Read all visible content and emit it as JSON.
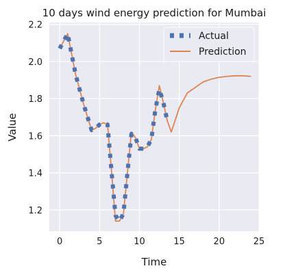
{
  "chart_data": {
    "type": "line",
    "title": "10 days wind energy prediction for Mumbai",
    "xlabel": "Time",
    "ylabel": "Value",
    "xlim": [
      -1.3,
      25.0
    ],
    "ylim": [
      1.085,
      2.21
    ],
    "xticks": [
      0,
      5,
      10,
      15,
      20,
      25
    ],
    "yticks": [
      1.2,
      1.4,
      1.6,
      1.8,
      2.0,
      2.2
    ],
    "xtick_labels": [
      "0",
      "5",
      "10",
      "15",
      "20",
      "25"
    ],
    "ytick_labels": [
      "1.2",
      "1.4",
      "1.6",
      "1.8",
      "2.0",
      "2.2"
    ],
    "grid": true,
    "legend_position": "top-right",
    "series": [
      {
        "name": "Actual",
        "style": "dotted",
        "color": "#4c72b0",
        "x": [
          0,
          0.5,
          1.0,
          1.5,
          2.0,
          2.5,
          3.0,
          3.5,
          4.0,
          4.5,
          5.0,
          5.5,
          6.0,
          6.5,
          7.0,
          7.5,
          8.0,
          8.5,
          9.0,
          9.5,
          10.0,
          10.5,
          11.0,
          11.5,
          12.0,
          12.5,
          13.0,
          13.5
        ],
        "y": [
          2.07,
          2.11,
          2.15,
          2.04,
          1.93,
          1.85,
          1.77,
          1.7,
          1.63,
          1.64,
          1.66,
          1.67,
          1.66,
          1.41,
          1.17,
          1.14,
          1.18,
          1.4,
          1.61,
          1.59,
          1.53,
          1.53,
          1.54,
          1.58,
          1.74,
          1.85,
          1.78,
          1.68
        ]
      },
      {
        "name": "Prediction",
        "style": "solid",
        "color": "#dd8452",
        "x": [
          0,
          0.5,
          1.0,
          1.5,
          2.0,
          2.5,
          3.0,
          3.5,
          4.0,
          4.5,
          5.0,
          5.5,
          6.0,
          6.5,
          7.0,
          7.5,
          8.0,
          8.5,
          9.0,
          9.5,
          10.0,
          10.5,
          11.0,
          11.5,
          12.0,
          12.5,
          13.0,
          13.5,
          14.0,
          15.0,
          16.0,
          17.0,
          18.0,
          19.0,
          20.0,
          21.0,
          22.0,
          23.0,
          24.0
        ],
        "y": [
          2.07,
          2.11,
          2.15,
          2.04,
          1.93,
          1.85,
          1.77,
          1.7,
          1.63,
          1.64,
          1.66,
          1.67,
          1.66,
          1.41,
          1.14,
          1.14,
          1.18,
          1.4,
          1.62,
          1.59,
          1.53,
          1.53,
          1.54,
          1.58,
          1.74,
          1.87,
          1.78,
          1.68,
          1.62,
          1.75,
          1.83,
          1.86,
          1.89,
          1.905,
          1.915,
          1.92,
          1.923,
          1.923,
          1.92
        ]
      }
    ]
  }
}
